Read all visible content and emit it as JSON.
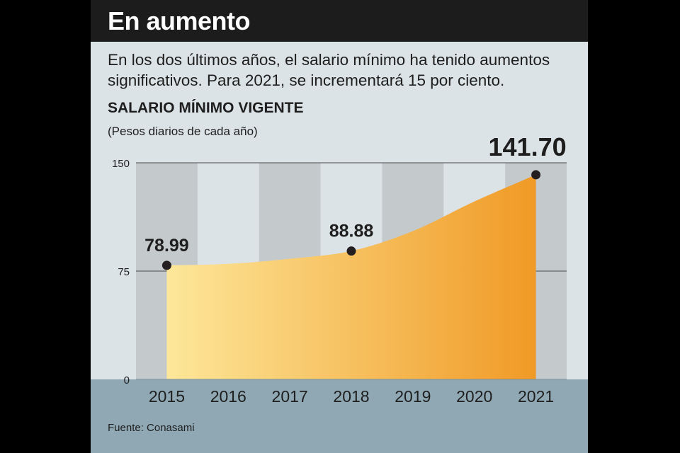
{
  "header": {
    "title": "En aumento"
  },
  "intro": "En los dos últimos años, el salario mínimo ha tenido aumentos significativos. Para 2021, se incrementará 15 por ciento.",
  "source": "Fuente: Conasami",
  "colors": {
    "title_bar": "#1c1c1c",
    "card": "#dce3e6",
    "band": "#c4c9cc",
    "axis_band": "#8fa8b4",
    "area_light": "#fde79a",
    "area_dark": "#f09a26",
    "marker": "#231f20"
  },
  "chart_data": {
    "type": "area",
    "title": "SALARIO MÍNIMO VIGENTE",
    "subtitle": "(Pesos diarios de cada año)",
    "x": [
      "2015",
      "2016",
      "2017",
      "2018",
      "2019",
      "2020",
      "2021"
    ],
    "series": [
      {
        "values": [
          78.99,
          80.04,
          83.5,
          88.88,
          102.68,
          123.22,
          141.7
        ]
      }
    ],
    "labeled_points": [
      {
        "x": "2015",
        "label": "78.99"
      },
      {
        "x": "2018",
        "label": "88.88"
      },
      {
        "x": "2021",
        "label": "141.70"
      }
    ],
    "yticks": [
      0,
      75,
      150
    ],
    "ylim": [
      0,
      150
    ],
    "grid": "alternating vertical bands",
    "legend": "none"
  }
}
